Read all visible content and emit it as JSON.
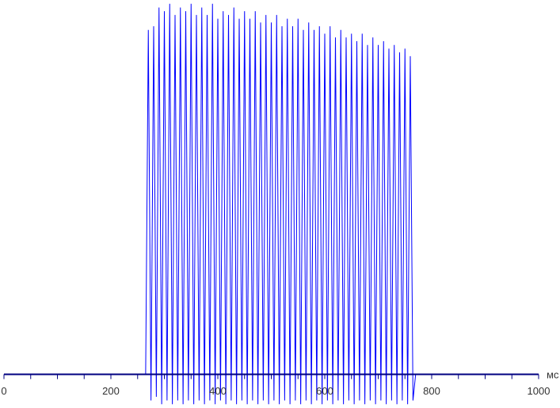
{
  "chart_data": {
    "type": "line",
    "x_label": "мс",
    "color": "#0000ff",
    "axis_color": "#000080",
    "xlim": [
      0,
      1000
    ],
    "xticks": [
      0,
      200,
      400,
      600,
      800,
      1000
    ],
    "xminor_ticks": [
      50,
      100,
      150,
      250,
      300,
      350,
      450,
      500,
      550,
      650,
      700,
      750,
      850,
      900,
      950
    ],
    "ylim": [
      -9,
      100
    ],
    "x": [
      0,
      265,
      270,
      275,
      280,
      285,
      290,
      295,
      300,
      305,
      310,
      315,
      320,
      325,
      330,
      335,
      340,
      345,
      350,
      355,
      360,
      365,
      370,
      375,
      380,
      385,
      390,
      395,
      400,
      405,
      410,
      415,
      420,
      425,
      430,
      435,
      440,
      445,
      450,
      455,
      460,
      465,
      470,
      475,
      480,
      485,
      490,
      495,
      500,
      505,
      510,
      515,
      520,
      525,
      530,
      535,
      540,
      545,
      550,
      555,
      560,
      565,
      570,
      575,
      580,
      585,
      590,
      595,
      600,
      605,
      610,
      615,
      620,
      625,
      630,
      635,
      640,
      645,
      650,
      655,
      660,
      665,
      670,
      675,
      680,
      685,
      690,
      695,
      700,
      705,
      710,
      715,
      720,
      725,
      730,
      735,
      740,
      745,
      750,
      755,
      760,
      765,
      770,
      1000
    ],
    "values": [
      0,
      0,
      92,
      -7,
      93,
      -6,
      98,
      -8,
      97,
      -7,
      99,
      -8,
      96,
      -7,
      98,
      -8,
      97,
      -7,
      99,
      -8,
      96,
      -7,
      98,
      -8,
      96,
      -7,
      99,
      -8,
      95,
      -7,
      97,
      -8,
      96,
      -7,
      98,
      -8,
      95,
      -7,
      97,
      -8,
      95,
      -7,
      97,
      -8,
      94,
      -7,
      96,
      -8,
      94,
      -7,
      96,
      -8,
      93,
      -7,
      95,
      -8,
      93,
      -7,
      95,
      -8,
      92,
      -7,
      94,
      -8,
      92,
      -7,
      93,
      -8,
      91,
      -7,
      93,
      -8,
      90,
      -7,
      92,
      -8,
      90,
      -7,
      91,
      -8,
      89,
      -7,
      91,
      -8,
      88,
      -7,
      90,
      -8,
      88,
      -7,
      89,
      -8,
      87,
      -7,
      88,
      -8,
      86,
      -7,
      87,
      -8,
      85,
      -7,
      0,
      0
    ]
  }
}
